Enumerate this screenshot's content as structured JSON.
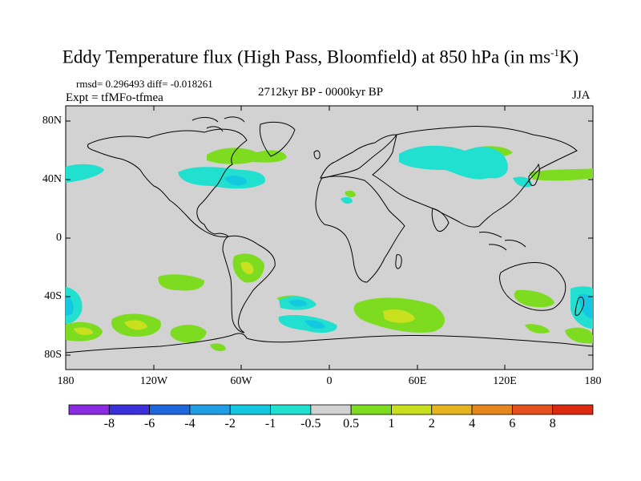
{
  "title": {
    "main": "Eddy Temperature flux (High Pass, Bloomfield) at 850 hPa (in ms",
    "sup": "-1",
    "tail": "K)"
  },
  "stats": {
    "rmsd": "rmsd= 0.296493 diff= -0.018261"
  },
  "experiment": "Expt = tfMFo-tfmea",
  "period": "2712kyr BP - 0000kyr BP",
  "season": "JJA",
  "axes": {
    "lat_labels": [
      "80N",
      "40N",
      "0",
      "40S",
      "80S"
    ],
    "lon_labels": [
      "180",
      "120W",
      "60W",
      "0",
      "60E",
      "120E",
      "180"
    ]
  },
  "colorbar": {
    "labels": [
      "-8",
      "-6",
      "-4",
      "-2",
      "-1",
      "-0.5",
      "0.5",
      "1",
      "2",
      "4",
      "6",
      "8"
    ],
    "colors": [
      "#8a2be2",
      "#3a2fd8",
      "#1e66dc",
      "#1f9ee6",
      "#13c8e0",
      "#22e0cf",
      "#d2d2d2",
      "#7ddc1f",
      "#c8e01e",
      "#e6b41e",
      "#e6871e",
      "#e6501e",
      "#dc2a10"
    ]
  },
  "colors": {
    "ocean_land": "#d2d2d2",
    "coast": "#000000"
  }
}
